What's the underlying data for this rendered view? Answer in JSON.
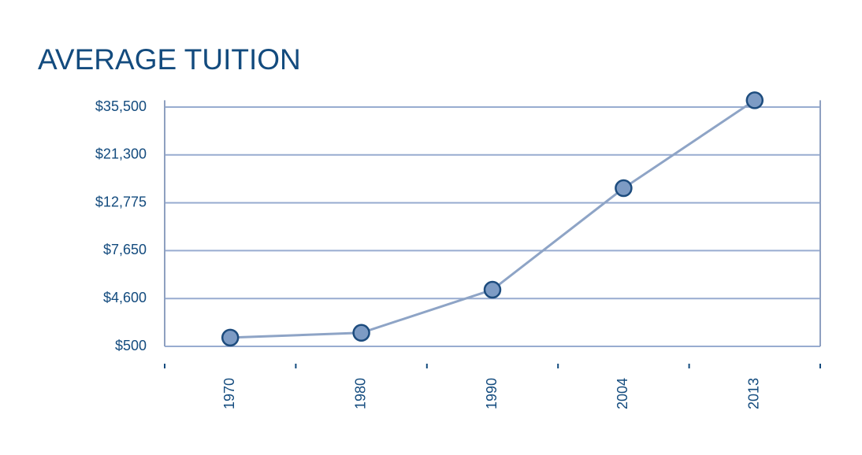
{
  "chart_data": {
    "type": "line",
    "title": "AVERAGE TUITION",
    "categories": [
      "1970",
      "1980",
      "1990",
      "2004",
      "2013"
    ],
    "values": [
      1250,
      1660,
      5160,
      15375,
      37500
    ],
    "color": "#8ea4c6",
    "marker_color": "#7d9bc4",
    "ylim": [
      500,
      37500
    ],
    "yticks": [
      {
        "value": 500,
        "label": "$500"
      },
      {
        "value": 4600,
        "label": "$4,600"
      },
      {
        "value": 7650,
        "label": "$7,650"
      },
      {
        "value": 12775,
        "label": "$12,775"
      },
      {
        "value": 21300,
        "label": "$21,300"
      },
      {
        "value": 35500,
        "label": "$35,500"
      }
    ],
    "grid": true
  }
}
